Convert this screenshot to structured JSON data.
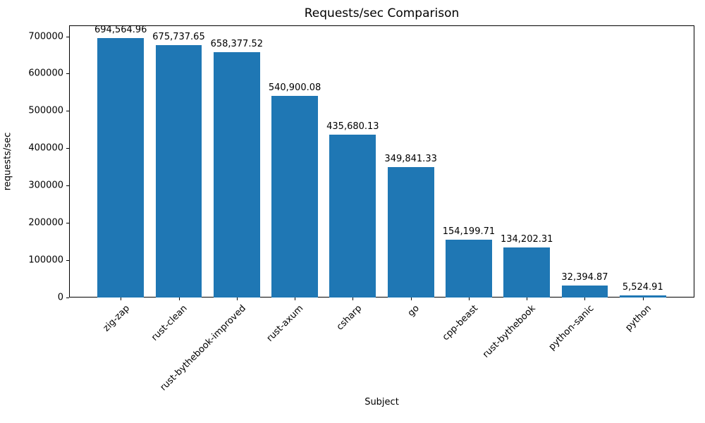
{
  "chart_data": {
    "type": "bar",
    "title": "Requests/sec Comparison",
    "xlabel": "Subject",
    "ylabel": "requests/sec",
    "categories": [
      "zig-zap",
      "rust-clean",
      "rust-bythebook-improved",
      "rust-axum",
      "csharp",
      "go",
      "cpp-beast",
      "rust-bythebook",
      "python-sanic",
      "python"
    ],
    "values": [
      694564.96,
      675737.65,
      658377.52,
      540900.08,
      435680.13,
      349841.33,
      154199.71,
      134202.31,
      32394.87,
      5524.91
    ],
    "value_labels": [
      "694,564.96",
      "675,737.65",
      "658,377.52",
      "540,900.08",
      "435,680.13",
      "349,841.33",
      "154,199.71",
      "134,202.31",
      "32,394.87",
      "5,524.91"
    ],
    "yticks": [
      0,
      100000,
      200000,
      300000,
      400000,
      500000,
      600000,
      700000
    ],
    "ylim": [
      0,
      729293
    ],
    "x_tick_rotation": 45,
    "grid": false,
    "legend": "none",
    "bar_color": "#1f77b4",
    "text_color": "#000000"
  }
}
